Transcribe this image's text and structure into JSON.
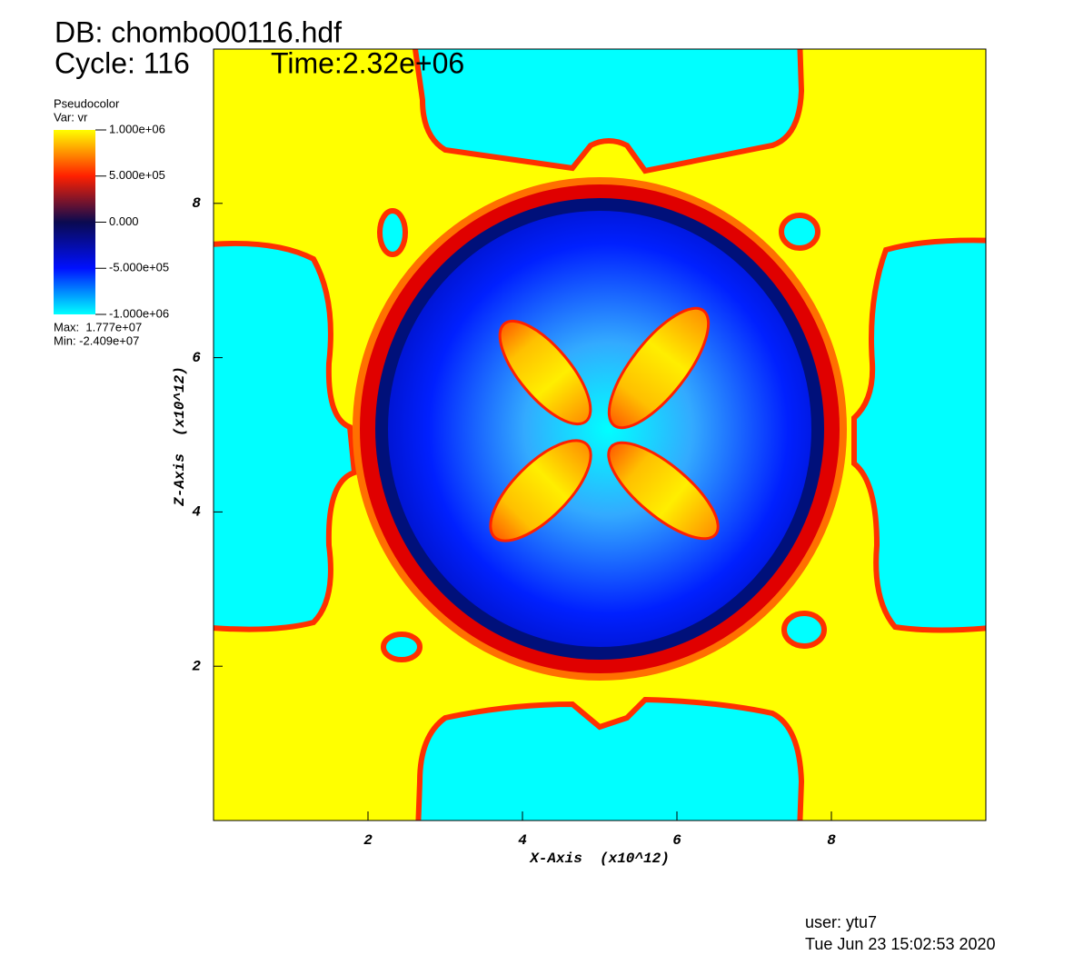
{
  "chart_data": {
    "type": "pseudocolor",
    "title": "DB: chombo00116.hdf",
    "cycle_label": "Cycle: 116",
    "time_label": "Time:2.32e+06",
    "legend": {
      "title": "Pseudocolor",
      "variable": "Var: vr",
      "lim": [
        -1000000,
        1000000
      ],
      "ticks": [
        {
          "value": 1000000,
          "label": "1.000e+06"
        },
        {
          "value": 500000,
          "label": "5.000e+05"
        },
        {
          "value": 0,
          "label": "0.000"
        },
        {
          "value": -500000,
          "label": "-5.000e+05"
        },
        {
          "value": -1000000,
          "label": "-1.000e+06"
        }
      ],
      "colors": [
        "#00ffff",
        "#0010ff",
        "#0a0a50",
        "#ff2000",
        "#ffff00"
      ],
      "max_label": "Max:  1.777e+07",
      "min_label": "Min: -2.409e+07"
    },
    "x_label": "X-Axis  (x10^12)",
    "y_label": "Z-Axis  (x10^12)",
    "xlim": [
      0,
      10
    ],
    "ylim": [
      0,
      10
    ],
    "xticks": [
      2,
      4,
      6,
      8
    ],
    "yticks": [
      2,
      4,
      6,
      8
    ],
    "user": "user: ytu7",
    "date": "Tue Jun 23 15:02:53 2020"
  }
}
